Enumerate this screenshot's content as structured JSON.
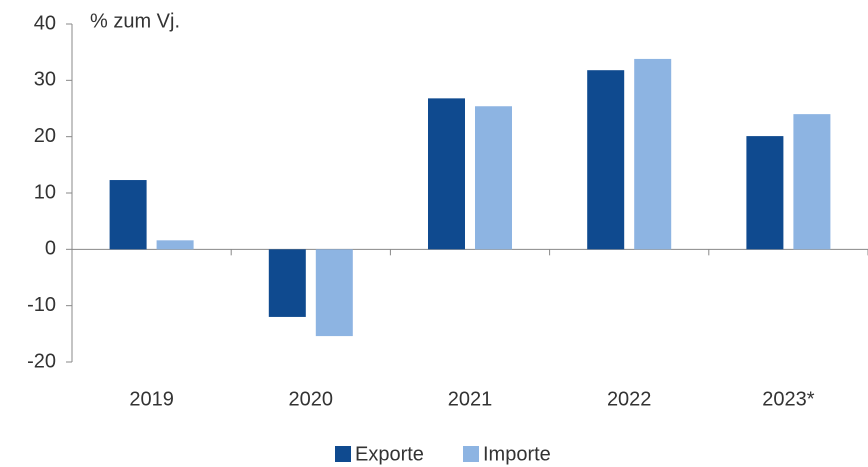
{
  "chart_data": {
    "type": "bar",
    "y_label": "% zum Vj.",
    "categories": [
      "2019",
      "2020",
      "2021",
      "2022",
      "2023*"
    ],
    "series": [
      {
        "name": "Exporte",
        "color": "#0f4a8f",
        "values": [
          12.3,
          -12.0,
          26.8,
          31.8,
          20.1
        ]
      },
      {
        "name": "Importe",
        "color": "#8db4e2",
        "values": [
          1.6,
          -15.4,
          25.4,
          33.8,
          24.0
        ]
      }
    ],
    "ylim": [
      -20,
      40
    ],
    "yticks": [
      -20,
      -10,
      0,
      10,
      20,
      30,
      40
    ],
    "grid": false,
    "legend": "bottom"
  }
}
